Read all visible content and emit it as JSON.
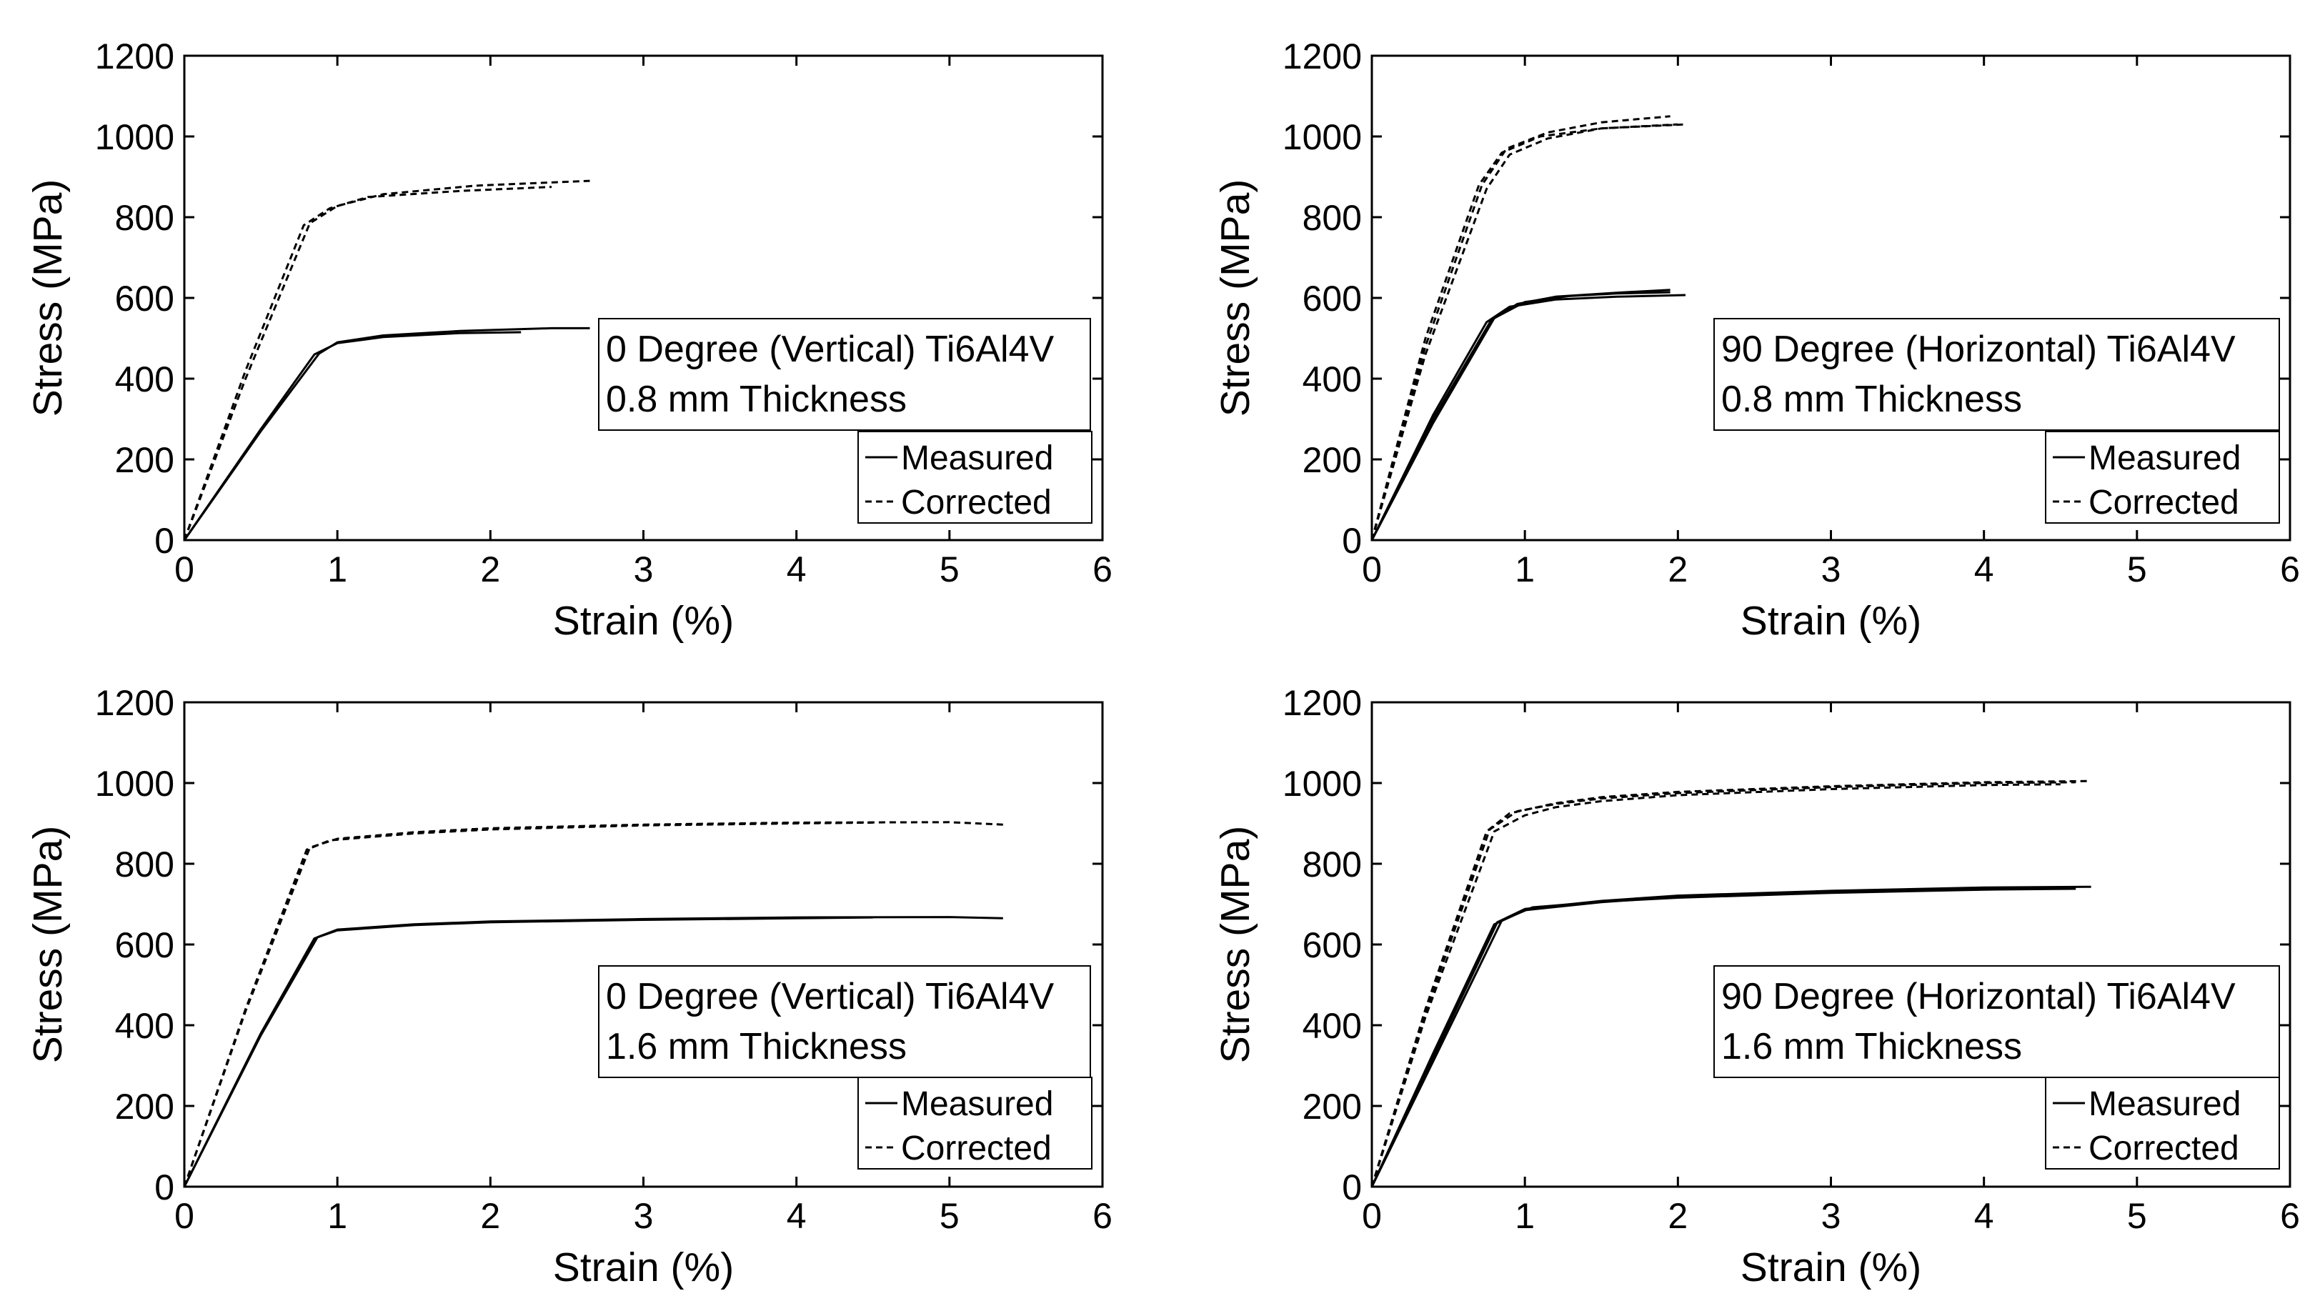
{
  "figure_colors": {
    "ink": "#000000",
    "background": "#ffffff"
  },
  "chart_data": [
    {
      "type": "line",
      "xlabel": "Strain (%)",
      "ylabel": "Stress (MPa)",
      "xlim": [
        0,
        6
      ],
      "ylim": [
        0,
        1200
      ],
      "xticks": [
        "0",
        "1",
        "2",
        "3",
        "4",
        "5",
        "6"
      ],
      "yticks": [
        "0",
        "200",
        "400",
        "600",
        "800",
        "1000",
        "1200"
      ],
      "annotation": [
        "0 Degree (Vertical) Ti6Al4V",
        "0.8 mm Thickness"
      ],
      "legend": {
        "position": "bottom-right",
        "entries": [
          "Measured",
          "Corrected"
        ]
      },
      "series": [
        {
          "name": "Measured",
          "style": "solid",
          "x": [
            0,
            0.5,
            0.85,
            1.0,
            1.3,
            1.8,
            2.2
          ],
          "y": [
            0,
            275,
            460,
            488,
            503,
            513,
            515
          ]
        },
        {
          "name": "Measured",
          "style": "solid",
          "x": [
            0,
            0.5,
            0.88,
            1.0,
            1.3,
            1.8,
            2.4,
            2.65
          ],
          "y": [
            0,
            270,
            462,
            490,
            507,
            518,
            525,
            525
          ]
        },
        {
          "name": "Corrected",
          "style": "dashed",
          "x": [
            0,
            0.4,
            0.78,
            0.95,
            1.2,
            1.8,
            2.4
          ],
          "y": [
            0,
            420,
            780,
            822,
            850,
            865,
            875
          ]
        },
        {
          "name": "Corrected",
          "style": "dashed",
          "x": [
            0,
            0.4,
            0.82,
            1.0,
            1.3,
            1.9,
            2.65
          ],
          "y": [
            0,
            400,
            785,
            828,
            857,
            878,
            890
          ]
        }
      ]
    },
    {
      "type": "line",
      "xlabel": "Strain (%)",
      "ylabel": "Stress (MPa)",
      "xlim": [
        0,
        6
      ],
      "ylim": [
        0,
        1200
      ],
      "xticks": [
        "0",
        "1",
        "2",
        "3",
        "4",
        "5",
        "6"
      ],
      "yticks": [
        "0",
        "200",
        "400",
        "600",
        "800",
        "1000",
        "1200"
      ],
      "annotation": [
        "90 Degree (Horizontal) Ti6Al4V",
        "0.8 mm Thickness"
      ],
      "legend": {
        "position": "bottom-right",
        "entries": [
          "Measured",
          "Corrected"
        ]
      },
      "series": [
        {
          "name": "Measured",
          "style": "solid",
          "x": [
            0,
            0.4,
            0.75,
            0.9,
            1.2,
            1.6,
            2.05
          ],
          "y": [
            0,
            310,
            540,
            578,
            596,
            603,
            607
          ]
        },
        {
          "name": "Measured",
          "style": "solid",
          "x": [
            0,
            0.4,
            0.78,
            0.95,
            1.2,
            1.6,
            1.95
          ],
          "y": [
            0,
            300,
            545,
            585,
            603,
            613,
            620
          ]
        },
        {
          "name": "Measured",
          "style": "solid",
          "x": [
            0,
            0.4,
            0.8,
            1.0,
            1.3,
            1.6,
            1.95
          ],
          "y": [
            0,
            290,
            550,
            590,
            605,
            611,
            614
          ]
        },
        {
          "name": "Corrected",
          "style": "dashed",
          "x": [
            0,
            0.35,
            0.7,
            0.85,
            1.1,
            1.5,
            2.05
          ],
          "y": [
            0,
            500,
            880,
            960,
            1000,
            1020,
            1030
          ]
        },
        {
          "name": "Corrected",
          "style": "dashed",
          "x": [
            0,
            0.35,
            0.72,
            0.88,
            1.15,
            1.5,
            1.95
          ],
          "y": [
            0,
            480,
            880,
            970,
            1010,
            1035,
            1050
          ]
        },
        {
          "name": "Corrected",
          "style": "dashed",
          "x": [
            0,
            0.35,
            0.75,
            0.9,
            1.15,
            1.5,
            2.0
          ],
          "y": [
            0,
            460,
            870,
            955,
            995,
            1020,
            1030
          ]
        }
      ]
    },
    {
      "type": "line",
      "xlabel": "Strain (%)",
      "ylabel": "Stress (MPa)",
      "xlim": [
        0,
        6
      ],
      "ylim": [
        0,
        1200
      ],
      "xticks": [
        "0",
        "1",
        "2",
        "3",
        "4",
        "5",
        "6"
      ],
      "yticks": [
        "0",
        "200",
        "400",
        "600",
        "800",
        "1000",
        "1200"
      ],
      "annotation": [
        "0 Degree (Vertical) Ti6Al4V",
        "1.6 mm Thickness"
      ],
      "legend": {
        "position": "bottom-right",
        "entries": [
          "Measured",
          "Corrected"
        ]
      },
      "series": [
        {
          "name": "Measured",
          "style": "solid",
          "x": [
            0,
            0.5,
            0.85,
            1.0,
            1.5,
            2.0,
            3.0,
            4.0,
            4.5
          ],
          "y": [
            0,
            380,
            615,
            635,
            648,
            655,
            661,
            665,
            667
          ]
        },
        {
          "name": "Measured",
          "style": "solid",
          "x": [
            0,
            0.5,
            0.87,
            1.0,
            1.5,
            2.0,
            3.0,
            4.0,
            5.0,
            5.35
          ],
          "y": [
            0,
            375,
            618,
            637,
            650,
            657,
            663,
            667,
            668,
            665
          ]
        },
        {
          "name": "Corrected",
          "style": "dashed",
          "x": [
            0,
            0.4,
            0.8,
            0.95,
            1.5,
            2.0,
            3.0,
            4.0,
            4.5
          ],
          "y": [
            0,
            440,
            835,
            858,
            875,
            885,
            895,
            900,
            902
          ]
        },
        {
          "name": "Corrected",
          "style": "dashed",
          "x": [
            0,
            0.4,
            0.82,
            1.0,
            1.5,
            2.0,
            3.0,
            4.0,
            5.0,
            5.35
          ],
          "y": [
            0,
            435,
            840,
            862,
            878,
            888,
            897,
            902,
            903,
            897
          ]
        }
      ]
    },
    {
      "type": "line",
      "xlabel": "Strain (%)",
      "ylabel": "Stress (MPa)",
      "xlim": [
        0,
        6
      ],
      "ylim": [
        0,
        1200
      ],
      "xticks": [
        "0",
        "1",
        "2",
        "3",
        "4",
        "5",
        "6"
      ],
      "yticks": [
        "0",
        "200",
        "400",
        "600",
        "800",
        "1000",
        "1200"
      ],
      "annotation": [
        "90 Degree (Horizontal) Ti6Al4V",
        "1.6 mm Thickness"
      ],
      "legend": {
        "position": "bottom-right",
        "entries": [
          "Measured",
          "Corrected"
        ]
      },
      "series": [
        {
          "name": "Measured",
          "style": "solid",
          "x": [
            0,
            0.4,
            0.8,
            1.0,
            1.5,
            2.0,
            3.0,
            4.0,
            4.5
          ],
          "y": [
            0,
            330,
            650,
            685,
            705,
            718,
            730,
            738,
            740
          ]
        },
        {
          "name": "Measured",
          "style": "solid",
          "x": [
            0,
            0.4,
            0.82,
            1.0,
            1.5,
            2.0,
            3.0,
            4.0,
            4.7
          ],
          "y": [
            0,
            320,
            655,
            688,
            708,
            721,
            733,
            741,
            743
          ]
        },
        {
          "name": "Measured",
          "style": "solid",
          "x": [
            0,
            0.4,
            0.85,
            1.05,
            1.5,
            2.0,
            3.0,
            4.0,
            4.6
          ],
          "y": [
            0,
            310,
            660,
            692,
            706,
            716,
            728,
            736,
            738
          ]
        },
        {
          "name": "Corrected",
          "style": "dashed",
          "x": [
            0,
            0.35,
            0.75,
            0.9,
            1.2,
            1.5,
            2.0,
            3.0,
            4.0,
            4.7
          ],
          "y": [
            0,
            440,
            880,
            925,
            950,
            965,
            978,
            992,
            1002,
            1005
          ]
        },
        {
          "name": "Corrected",
          "style": "dashed",
          "x": [
            0,
            0.35,
            0.77,
            0.95,
            1.2,
            1.5,
            2.0,
            3.0,
            4.0,
            4.6
          ],
          "y": [
            0,
            430,
            885,
            930,
            948,
            962,
            975,
            990,
            1000,
            1002
          ]
        },
        {
          "name": "Corrected",
          "style": "dashed",
          "x": [
            0,
            0.35,
            0.8,
            1.0,
            1.2,
            1.5,
            2.0,
            3.0,
            4.0,
            4.5
          ],
          "y": [
            0,
            420,
            880,
            920,
            940,
            955,
            970,
            985,
            995,
            997
          ]
        }
      ]
    }
  ]
}
